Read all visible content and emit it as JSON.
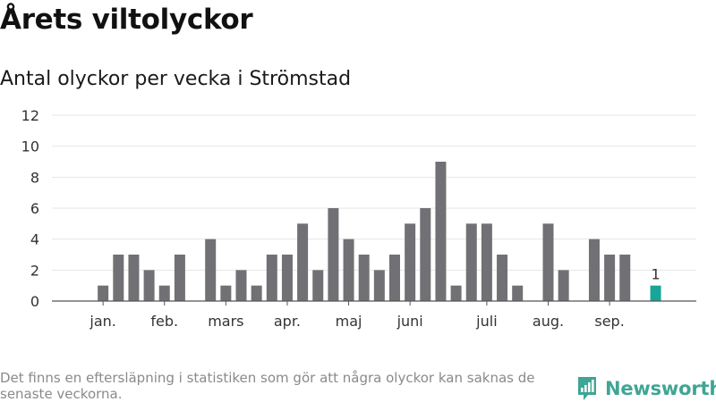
{
  "title": "Årets viltolyckor",
  "subtitle": "Antal olyckor per vecka i Strömstad",
  "footnote": "Det finns en eftersläpning i statistiken som gör att några olyckor kan saknas de senaste veckorna.",
  "brand": {
    "name": "Newsworthy",
    "logo_icon": "newsworthy-logo-icon"
  },
  "colors": {
    "bar": "#717075",
    "highlight": "#17a697",
    "grid": "#e6e6e6",
    "axis": "#555555",
    "brand": "#3fa595"
  },
  "chart_data": {
    "type": "bar",
    "title": "Antal olyckor per vecka i Strömstad",
    "xlabel": "",
    "ylabel": "",
    "ylim": [
      0,
      12
    ],
    "yticks": [
      0,
      2,
      4,
      6,
      8,
      10,
      12
    ],
    "grid": true,
    "weeks": [
      1,
      2,
      3,
      4,
      5,
      6,
      7,
      8,
      9,
      10,
      11,
      12,
      13,
      14,
      15,
      16,
      17,
      18,
      19,
      20,
      21,
      22,
      23,
      24,
      25,
      26,
      27,
      28,
      29,
      30,
      31,
      32,
      33,
      34,
      35,
      36,
      37,
      38,
      39,
      40,
      41
    ],
    "values": [
      0,
      1,
      3,
      3,
      2,
      1,
      3,
      0,
      4,
      1,
      2,
      1,
      3,
      3,
      5,
      2,
      6,
      4,
      3,
      2,
      3,
      5,
      6,
      9,
      1,
      5,
      5,
      3,
      1,
      0,
      5,
      2,
      0,
      4,
      3,
      3,
      0,
      1,
      null,
      null,
      null
    ],
    "highlight_week": 38,
    "highlight_label": "1",
    "month_labels": [
      {
        "label": "jan.",
        "week": 2
      },
      {
        "label": "feb.",
        "week": 6
      },
      {
        "label": "mars",
        "week": 10
      },
      {
        "label": "apr.",
        "week": 14
      },
      {
        "label": "maj",
        "week": 18
      },
      {
        "label": "juni",
        "week": 22
      },
      {
        "label": "juli",
        "week": 27
      },
      {
        "label": "aug.",
        "week": 31
      },
      {
        "label": "sep.",
        "week": 35
      }
    ]
  }
}
